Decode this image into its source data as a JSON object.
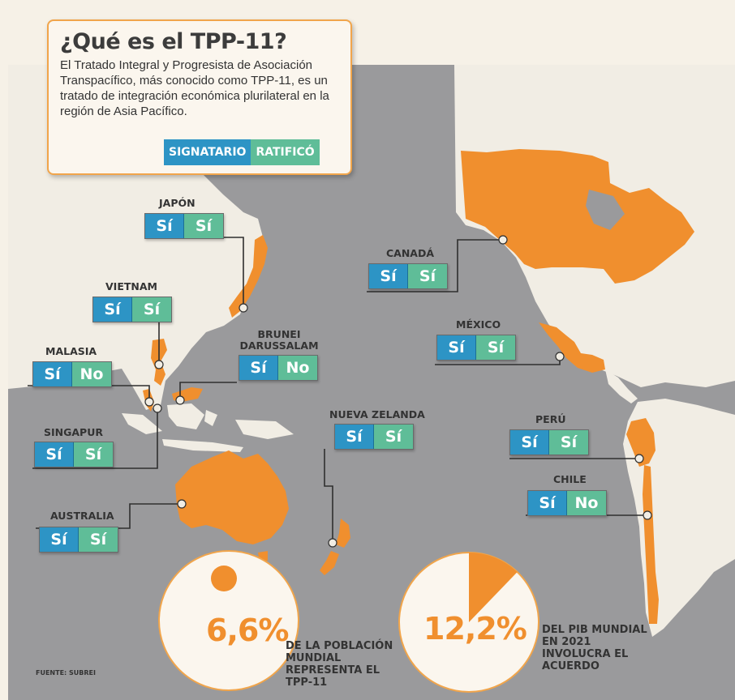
{
  "header": {
    "title": "¿Qué es el TPP-11?",
    "description": "El Tratado Integral y Progresista de Asociación Transpacífico, más conocido como TPP-11, es un tratado de integración económica plurilateral en la región de Asia Pacífico."
  },
  "legend": {
    "signatario": "SIGNATARIO",
    "ratifico": "RATIFICÓ"
  },
  "countries": [
    {
      "name": "JAPÓN",
      "signatario": "Sí",
      "ratifico": "Sí"
    },
    {
      "name": "VIETNAM",
      "signatario": "Sí",
      "ratifico": "Sí"
    },
    {
      "name": "MALASIA",
      "signatario": "Sí",
      "ratifico": "No"
    },
    {
      "name": "SINGAPUR",
      "signatario": "Sí",
      "ratifico": "Sí"
    },
    {
      "name": "AUSTRALIA",
      "signatario": "Sí",
      "ratifico": "Sí"
    },
    {
      "name": "BRUNEI DARUSSALAM",
      "signatario": "Sí",
      "ratifico": "No"
    },
    {
      "name": "NUEVA ZELANDA",
      "signatario": "Sí",
      "ratifico": "Sí"
    },
    {
      "name": "CANADÁ",
      "signatario": "Sí",
      "ratifico": "Sí"
    },
    {
      "name": "MÉXICO",
      "signatario": "Sí",
      "ratifico": "Sí"
    },
    {
      "name": "PERÚ",
      "signatario": "Sí",
      "ratifico": "Sí"
    },
    {
      "name": "CHILE",
      "signatario": "Sí",
      "ratifico": "No"
    }
  ],
  "stats": {
    "population": {
      "value": "6,6%",
      "text": "DE LA POBLACIÓN MUNDIAL REPRESENTA EL TPP-11",
      "fraction": 0.066
    },
    "gdp": {
      "value": "12,2%",
      "text": "DEL PIB MUNDIAL EN 2021 INVOLUCRA EL ACUERDO",
      "fraction": 0.122
    }
  },
  "source": "FUENTE: SUBREI",
  "colors": {
    "ocean": "#9a9a9c",
    "land": "#f1ede4",
    "member": "#f08f2e",
    "signatario": "#2d94c5",
    "ratifico": "#5fbd98"
  }
}
